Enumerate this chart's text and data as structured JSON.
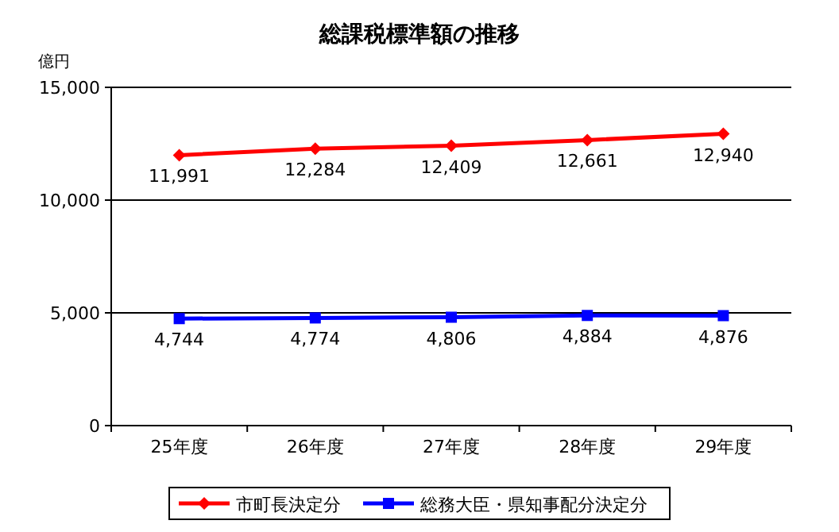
{
  "chart_data": {
    "type": "line",
    "title": "総課税標準額の推移",
    "ylabel": "億円",
    "categories": [
      "25年度",
      "26年度",
      "27年度",
      "28年度",
      "29年度"
    ],
    "series": [
      {
        "name": "市町長決定分",
        "color": "#ff0000",
        "marker": "diamond",
        "values": [
          11991,
          12284,
          12409,
          12661,
          12940
        ],
        "value_labels": [
          "11,991",
          "12,284",
          "12,409",
          "12,661",
          "12,940"
        ]
      },
      {
        "name": "総務大臣・県知事配分決定分",
        "color": "#0000ff",
        "marker": "square",
        "values": [
          4744,
          4774,
          4806,
          4884,
          4876
        ],
        "value_labels": [
          "4,744",
          "4,774",
          "4,806",
          "4,884",
          "4,876"
        ]
      }
    ],
    "ylim": [
      0,
      15000
    ],
    "yticks": [
      {
        "value": 0,
        "label": "0"
      },
      {
        "value": 5000,
        "label": "5,000"
      },
      {
        "value": 10000,
        "label": "10,000"
      },
      {
        "value": 15000,
        "label": "15,000"
      }
    ],
    "grid": "y",
    "legend": "bottom"
  }
}
